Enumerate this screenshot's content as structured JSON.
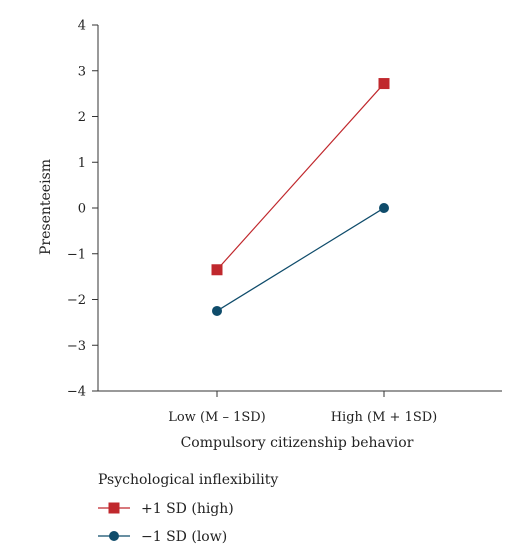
{
  "chart_data": {
    "type": "line",
    "title": "",
    "xlabel": "Compulsory citizenship behavior",
    "ylabel": "Presenteeism",
    "categories": [
      "Low (M – 1SD)",
      "High (M + 1SD)"
    ],
    "ylim": [
      -4,
      4
    ],
    "yticks": [
      -4,
      -3,
      -2,
      -1,
      0,
      1,
      2,
      3,
      4
    ],
    "ytick_labels": [
      "−4",
      "−3",
      "−2",
      "−1",
      "0",
      "1",
      "2",
      "3",
      "4"
    ],
    "grid": false,
    "legend": {
      "title": "Psychological inflexibility",
      "placement": "bottom-left"
    },
    "series": [
      {
        "name": "+1 SD (high)",
        "values": [
          -1.35,
          2.72
        ],
        "color": "#c0282d",
        "marker": "square"
      },
      {
        "name": "−1 SD (low)",
        "values": [
          -2.25,
          0.0
        ],
        "color": "#0f4c6b",
        "marker": "circle"
      }
    ]
  }
}
